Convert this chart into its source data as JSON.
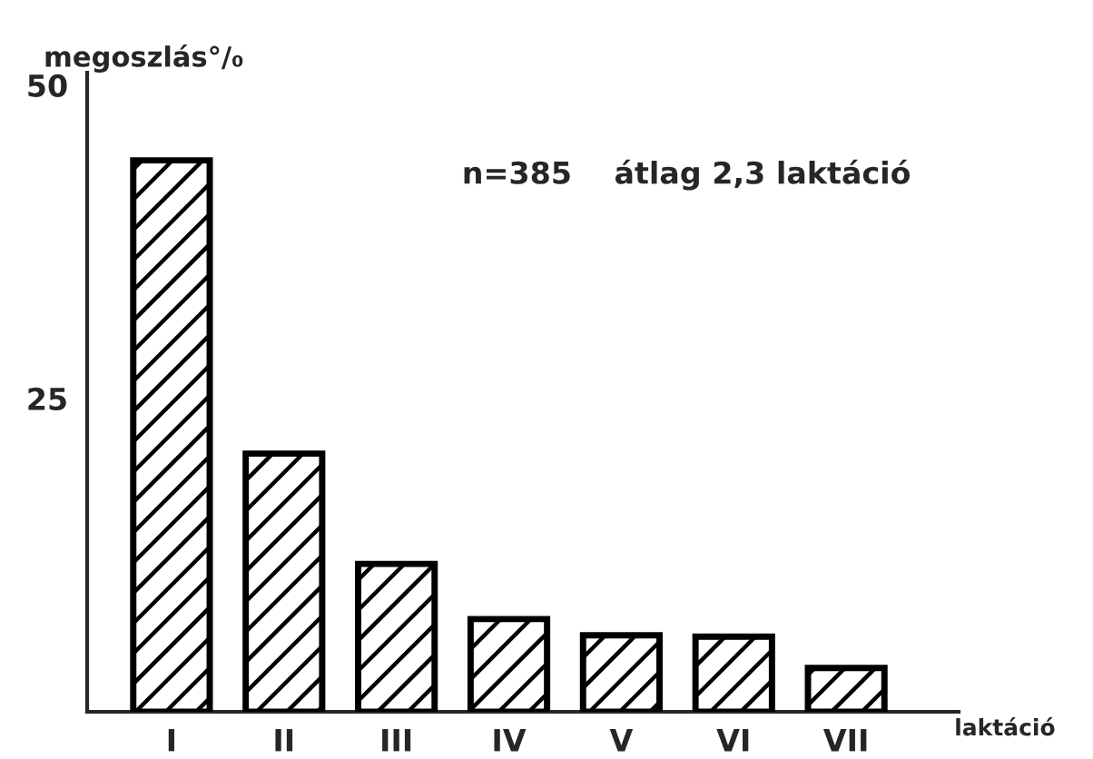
{
  "chart_data": {
    "type": "bar",
    "categories": [
      "I",
      "II",
      "III",
      "IV",
      "V",
      "VI",
      "VII"
    ],
    "values": [
      44,
      20.6,
      11.8,
      7.4,
      6.1,
      6.0,
      3.5
    ],
    "color": "#000000",
    "ylim": [
      0,
      51
    ],
    "yticks": [
      25,
      50
    ],
    "ylabel": "megoszlás°/₀",
    "xlabel": "laktáció",
    "annotations": [
      "n=385    átlag 2,3 laktáció"
    ],
    "grid": false,
    "legend": false
  }
}
